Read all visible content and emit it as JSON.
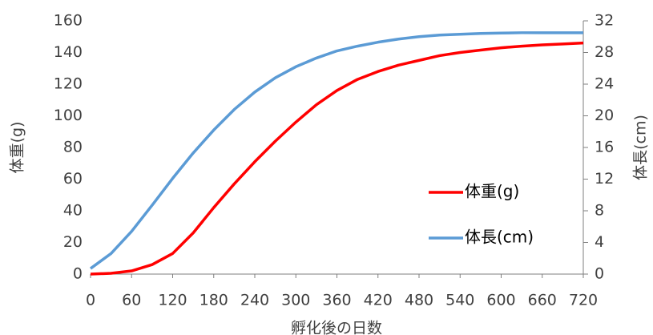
{
  "chart_data": {
    "type": "line",
    "x": [
      0,
      30,
      60,
      90,
      120,
      150,
      180,
      210,
      240,
      270,
      300,
      330,
      360,
      390,
      420,
      450,
      480,
      510,
      540,
      570,
      600,
      630,
      660,
      690,
      720
    ],
    "series": [
      {
        "name": "体重(g)",
        "color": "#ff0000",
        "values": [
          0,
          0.5,
          2,
          6,
          13,
          26,
          42,
          57,
          71,
          84,
          96,
          107,
          116,
          123,
          128,
          132,
          135,
          138,
          140,
          141.5,
          143,
          144,
          144.8,
          145.4,
          146
        ]
      },
      {
        "name": "体長(cm)",
        "color": "#5b9bd5",
        "axis": "y2",
        "values": [
          0.7,
          2.6,
          5.4,
          8.7,
          12.1,
          15.3,
          18.2,
          20.8,
          23,
          24.8,
          26.2,
          27.3,
          28.2,
          28.8,
          29.3,
          29.7,
          30,
          30.2,
          30.3,
          30.4,
          30.45,
          30.5,
          30.5,
          30.5,
          30.5
        ]
      }
    ],
    "xlabel": "孵化後の日数",
    "ylabel": "体重(g)",
    "y2label": "体長(cm)",
    "xlim": [
      0,
      720
    ],
    "xticks": [
      0,
      60,
      120,
      180,
      240,
      300,
      360,
      420,
      480,
      540,
      600,
      660,
      720
    ],
    "ylim": [
      0,
      160
    ],
    "yticks": [
      0,
      20,
      40,
      60,
      80,
      100,
      120,
      140,
      160
    ],
    "y2lim": [
      0,
      32
    ],
    "y2ticks": [
      0,
      4,
      8,
      12,
      16,
      20,
      24,
      28,
      32
    ],
    "legend": "right"
  }
}
